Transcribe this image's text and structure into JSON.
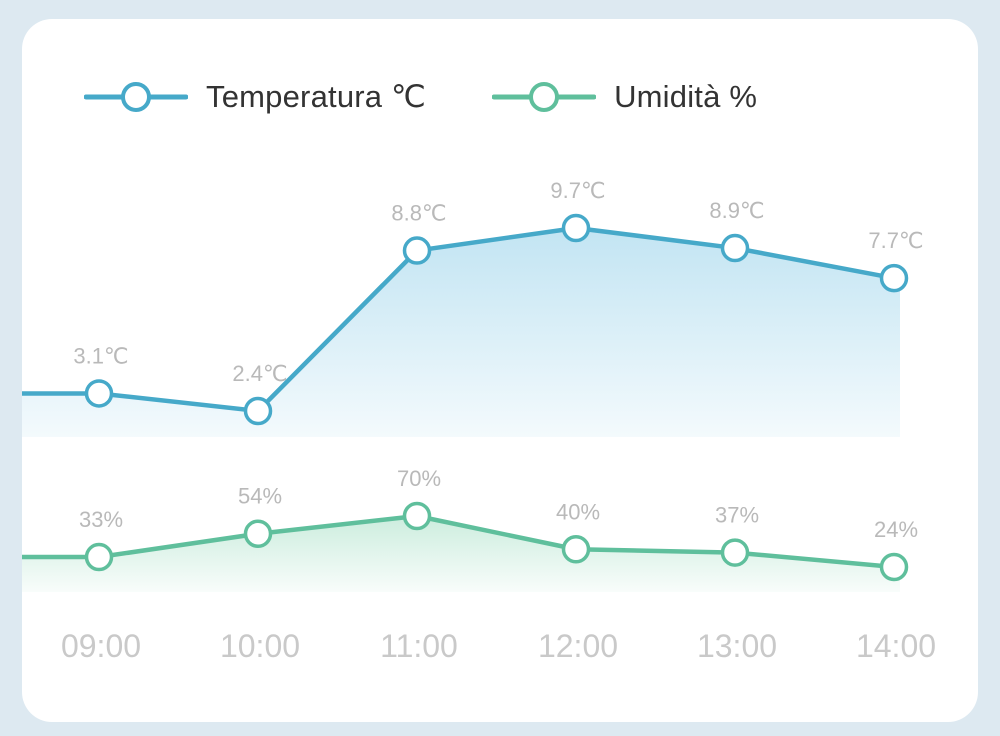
{
  "legend": {
    "temperature_label": "Temperatura ℃",
    "humidity_label": "Umidità %"
  },
  "colors": {
    "background": "#dde9f1",
    "card": "#ffffff",
    "temperature": "#46a9c9",
    "humidity": "#5fbf9c",
    "label": "#b9b9b9",
    "tick": "#c9c9c9"
  },
  "chart_data": {
    "type": "line",
    "categories": [
      "09:00",
      "10:00",
      "11:00",
      "12:00",
      "13:00",
      "14:00"
    ],
    "series": [
      {
        "name": "Temperatura ℃",
        "values": [
          3.1,
          2.4,
          8.8,
          9.7,
          8.9,
          7.7
        ],
        "labels": [
          "3.1℃",
          "2.4℃",
          "8.8℃",
          "9.7℃",
          "8.9℃",
          "7.7℃"
        ],
        "color": "#46a9c9",
        "area_fill": true
      },
      {
        "name": "Umidità %",
        "values": [
          33,
          54,
          70,
          40,
          37,
          24
        ],
        "labels": [
          "33%",
          "54%",
          "70%",
          "40%",
          "37%",
          "24%"
        ],
        "color": "#5fbf9c",
        "area_fill": true
      }
    ],
    "legend_position": "top-left",
    "grid": false
  }
}
